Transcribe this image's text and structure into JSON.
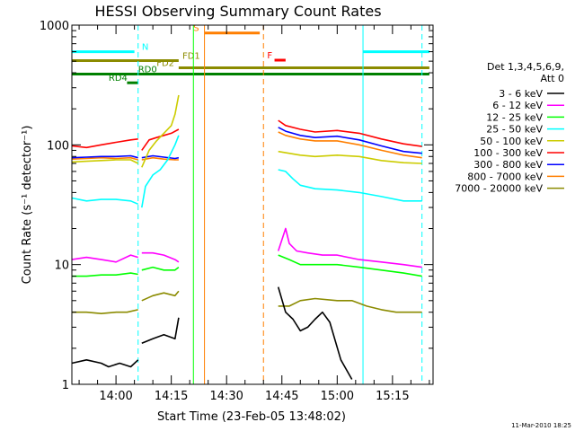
{
  "chart_data": {
    "type": "line",
    "title": "HESSI Observing Summary Count Rates",
    "xlabel": "Start Time (23-Feb-05 13:48:02)",
    "ylabel": "Count Rate (s⁻¹ detector⁻¹)",
    "x_units": "UT time (hh:mm)",
    "x_range": [
      "13:48:02",
      "15:26:00"
    ],
    "x_ticks": [
      "14:00",
      "14:15",
      "14:30",
      "14:45",
      "15:00",
      "15:15"
    ],
    "y_scale": "log",
    "ylim": [
      1,
      1000
    ],
    "y_ticks": [
      "1",
      "10",
      "100",
      "1000"
    ],
    "legend_header": [
      "Det 1,3,4,5,6,9,",
      "Att 0"
    ],
    "legend_position": "right",
    "timestamp": "11-Mar-2010 18:25",
    "series": [
      {
        "name": "3 - 6 keV",
        "color": "#000000",
        "segments": [
          [
            [
              "13:48",
              1.5
            ],
            [
              "13:52",
              1.6
            ],
            [
              "13:56",
              1.5
            ],
            [
              "13:58",
              1.4
            ],
            [
              "14:01",
              1.5
            ],
            [
              "14:04",
              1.4
            ],
            [
              "14:06",
              1.6
            ]
          ],
          [
            [
              "14:07",
              2.2
            ],
            [
              "14:10",
              2.4
            ],
            [
              "14:13",
              2.6
            ],
            [
              "14:16",
              2.4
            ],
            [
              "14:17",
              3.6
            ]
          ],
          [
            [
              "14:44",
              6.5
            ],
            [
              "14:46",
              4.0
            ],
            [
              "14:48",
              3.5
            ],
            [
              "14:50",
              2.8
            ],
            [
              "14:52",
              3.0
            ],
            [
              "14:54",
              3.5
            ],
            [
              "14:56",
              4.0
            ],
            [
              "14:58",
              3.3
            ],
            [
              "15:01",
              1.6
            ],
            [
              "15:04",
              1.1
            ]
          ]
        ]
      },
      {
        "name": "6 - 12 keV",
        "color": "#ff00ff",
        "segments": [
          [
            [
              "13:48",
              11.0
            ],
            [
              "13:52",
              11.5
            ],
            [
              "13:56",
              11.0
            ],
            [
              "14:00",
              10.5
            ],
            [
              "14:04",
              12.0
            ],
            [
              "14:06",
              11.5
            ]
          ],
          [
            [
              "14:07",
              12.5
            ],
            [
              "14:10",
              12.5
            ],
            [
              "14:13",
              12.0
            ],
            [
              "14:16",
              11.0
            ],
            [
              "14:17",
              10.5
            ]
          ],
          [
            [
              "14:44",
              13.0
            ],
            [
              "14:46",
              20.0
            ],
            [
              "14:47",
              15.0
            ],
            [
              "14:49",
              13.0
            ],
            [
              "14:52",
              12.5
            ],
            [
              "14:56",
              12.0
            ],
            [
              "15:00",
              12.0
            ],
            [
              "15:06",
              11.0
            ],
            [
              "15:12",
              10.5
            ],
            [
              "15:18",
              10.0
            ],
            [
              "15:23",
              9.5
            ]
          ]
        ]
      },
      {
        "name": "12 - 25 keV",
        "color": "#00ff00",
        "segments": [
          [
            [
              "13:48",
              8.0
            ],
            [
              "13:52",
              8.0
            ],
            [
              "13:56",
              8.2
            ],
            [
              "14:00",
              8.2
            ],
            [
              "14:04",
              8.5
            ],
            [
              "14:06",
              8.3
            ]
          ],
          [
            [
              "14:07",
              9.0
            ],
            [
              "14:10",
              9.5
            ],
            [
              "14:13",
              9.0
            ],
            [
              "14:16",
              9.0
            ],
            [
              "14:17",
              9.5
            ]
          ],
          [
            [
              "14:44",
              12.0
            ],
            [
              "14:47",
              11.0
            ],
            [
              "14:50",
              10.0
            ],
            [
              "14:54",
              10.0
            ],
            [
              "15:00",
              10.0
            ],
            [
              "15:06",
              9.5
            ],
            [
              "15:12",
              9.0
            ],
            [
              "15:18",
              8.5
            ],
            [
              "15:23",
              8.0
            ]
          ]
        ]
      },
      {
        "name": "25 - 50 keV",
        "color": "#00ffff",
        "segments": [
          [
            [
              "13:48",
              36
            ],
            [
              "13:52",
              34
            ],
            [
              "13:56",
              35
            ],
            [
              "14:00",
              35
            ],
            [
              "14:04",
              34
            ],
            [
              "14:06",
              32
            ]
          ],
          [
            [
              "14:07",
              30
            ],
            [
              "14:08",
              45
            ],
            [
              "14:10",
              56
            ],
            [
              "14:12",
              62
            ],
            [
              "14:14",
              75
            ],
            [
              "14:16",
              100
            ],
            [
              "14:17",
              120
            ]
          ],
          [
            [
              "14:44",
              62
            ],
            [
              "14:46",
              60
            ],
            [
              "14:48",
              52
            ],
            [
              "14:50",
              46
            ],
            [
              "14:54",
              43
            ],
            [
              "15:00",
              42
            ],
            [
              "15:06",
              40
            ],
            [
              "15:12",
              37
            ],
            [
              "15:18",
              34
            ],
            [
              "15:23",
              34
            ]
          ]
        ]
      },
      {
        "name": "50 - 100 keV",
        "color": "#cccc00",
        "segments": [
          [
            [
              "13:48",
              72
            ],
            [
              "13:52",
              73
            ],
            [
              "13:56",
              74
            ],
            [
              "14:00",
              75
            ],
            [
              "14:04",
              75
            ],
            [
              "14:06",
              70
            ]
          ],
          [
            [
              "14:07",
              65
            ],
            [
              "14:09",
              90
            ],
            [
              "14:11",
              108
            ],
            [
              "14:13",
              125
            ],
            [
              "14:15",
              145
            ],
            [
              "14:16",
              180
            ],
            [
              "14:17",
              260
            ]
          ],
          [
            [
              "14:44",
              88
            ],
            [
              "14:46",
              86
            ],
            [
              "14:50",
              82
            ],
            [
              "14:54",
              80
            ],
            [
              "15:00",
              82
            ],
            [
              "15:06",
              80
            ],
            [
              "15:12",
              74
            ],
            [
              "15:18",
              71
            ],
            [
              "15:23",
              70
            ]
          ]
        ]
      },
      {
        "name": "100 - 300 keV",
        "color": "#ff0000",
        "segments": [
          [
            [
              "13:48",
              98
            ],
            [
              "13:52",
              95
            ],
            [
              "13:56",
              100
            ],
            [
              "14:00",
              105
            ],
            [
              "14:04",
              110
            ],
            [
              "14:06",
              112
            ]
          ],
          [
            [
              "14:07",
              90
            ],
            [
              "14:09",
              110
            ],
            [
              "14:11",
              115
            ],
            [
              "14:13",
              120
            ],
            [
              "14:15",
              125
            ],
            [
              "14:17",
              135
            ]
          ],
          [
            [
              "14:44",
              160
            ],
            [
              "14:46",
              145
            ],
            [
              "14:50",
              135
            ],
            [
              "14:54",
              128
            ],
            [
              "15:00",
              132
            ],
            [
              "15:06",
              125
            ],
            [
              "15:12",
              112
            ],
            [
              "15:18",
              102
            ],
            [
              "15:23",
              97
            ]
          ]
        ]
      },
      {
        "name": "300 - 800 keV",
        "color": "#0000ff",
        "segments": [
          [
            [
              "13:48",
              78
            ],
            [
              "13:52",
              79
            ],
            [
              "13:56",
              80
            ],
            [
              "14:00",
              80
            ],
            [
              "14:04",
              81
            ],
            [
              "14:06",
              78
            ]
          ],
          [
            [
              "14:07",
              78
            ],
            [
              "14:10",
              81
            ],
            [
              "14:13",
              79
            ],
            [
              "14:16",
              77
            ],
            [
              "14:17",
              78
            ]
          ],
          [
            [
              "14:44",
              140
            ],
            [
              "14:46",
              130
            ],
            [
              "14:50",
              120
            ],
            [
              "14:54",
              115
            ],
            [
              "15:00",
              118
            ],
            [
              "15:06",
              110
            ],
            [
              "15:12",
              98
            ],
            [
              "15:18",
              88
            ],
            [
              "15:23",
              85
            ]
          ]
        ]
      },
      {
        "name": "800 - 7000 keV",
        "color": "#ff7f00",
        "segments": [
          [
            [
              "13:48",
              76
            ],
            [
              "13:52",
              77
            ],
            [
              "13:56",
              78
            ],
            [
              "14:00",
              77
            ],
            [
              "14:04",
              78
            ],
            [
              "14:06",
              75
            ]
          ],
          [
            [
              "14:07",
              75
            ],
            [
              "14:10",
              78
            ],
            [
              "14:13",
              76
            ],
            [
              "14:16",
              75
            ],
            [
              "14:17",
              75
            ]
          ],
          [
            [
              "14:44",
              128
            ],
            [
              "14:46",
              120
            ],
            [
              "14:50",
              112
            ],
            [
              "14:54",
              108
            ],
            [
              "15:00",
              108
            ],
            [
              "15:06",
              100
            ],
            [
              "15:12",
              90
            ],
            [
              "15:18",
              82
            ],
            [
              "15:23",
              78
            ]
          ]
        ]
      },
      {
        "name": "7000 - 20000 keV",
        "color": "#8b8b00",
        "segments": [
          [
            [
              "13:48",
              4.0
            ],
            [
              "13:52",
              4.0
            ],
            [
              "13:56",
              3.9
            ],
            [
              "14:00",
              4.0
            ],
            [
              "14:03",
              4.0
            ],
            [
              "14:06",
              4.2
            ]
          ],
          [
            [
              "14:07",
              5.0
            ],
            [
              "14:10",
              5.5
            ],
            [
              "14:13",
              5.8
            ],
            [
              "14:16",
              5.5
            ],
            [
              "14:17",
              6.0
            ]
          ],
          [
            [
              "14:44",
              4.5
            ],
            [
              "14:47",
              4.5
            ],
            [
              "14:50",
              5.0
            ],
            [
              "14:54",
              5.2
            ],
            [
              "15:00",
              5.0
            ],
            [
              "15:04",
              5.0
            ],
            [
              "15:08",
              4.5
            ],
            [
              "15:12",
              4.2
            ],
            [
              "15:16",
              4.0
            ],
            [
              "15:20",
              4.0
            ],
            [
              "15:23",
              4.0
            ]
          ]
        ]
      }
    ],
    "flag_bars": [
      {
        "label": "N",
        "color": "#00ffff",
        "level": 600,
        "segments": [
          [
            "13:48",
            "14:05"
          ],
          [
            "15:07",
            "15:25"
          ]
        ],
        "label_at": "14:07"
      },
      {
        "label": "S",
        "color": "#ff7f00",
        "level": 860,
        "segments": [
          [
            "14:24",
            "14:39"
          ]
        ],
        "label_at": "14:21"
      },
      {
        "label": "F",
        "color": "#ff0000",
        "level": 510,
        "segments": [
          [
            "14:43",
            "14:46"
          ]
        ],
        "label_at": "14:41"
      },
      {
        "label": "FD1",
        "color": "#8b8b00",
        "level": 505,
        "segments": [
          [
            "13:48",
            "14:17"
          ]
        ],
        "label_at": "14:18"
      },
      {
        "label": "FD2",
        "color": "#8b8b00",
        "level": 440,
        "segments": [
          [
            "14:17",
            "15:25"
          ]
        ],
        "label_at": "14:11"
      },
      {
        "label": "RD0",
        "color": "#008000",
        "level": 390,
        "segments": [
          [
            "13:48",
            "15:25"
          ]
        ],
        "label_at": "14:06"
      },
      {
        "label": "RD4",
        "color": "#008000",
        "level": 330,
        "segments": [
          [
            "14:03",
            "14:06"
          ]
        ],
        "label_at": "13:58"
      }
    ],
    "markers": [
      {
        "time": "14:06",
        "color": "#00ffff",
        "style": "dashed"
      },
      {
        "time": "15:07",
        "color": "#00ffff",
        "style": "solid"
      },
      {
        "time": "15:23",
        "color": "#00ffff",
        "style": "dashed"
      },
      {
        "time": "14:21",
        "color": "#00ff00",
        "style": "solid"
      },
      {
        "time": "14:24",
        "color": "#ff7f00",
        "style": "solid"
      },
      {
        "time": "14:40",
        "color": "#ff7f00",
        "style": "dashed"
      }
    ]
  }
}
